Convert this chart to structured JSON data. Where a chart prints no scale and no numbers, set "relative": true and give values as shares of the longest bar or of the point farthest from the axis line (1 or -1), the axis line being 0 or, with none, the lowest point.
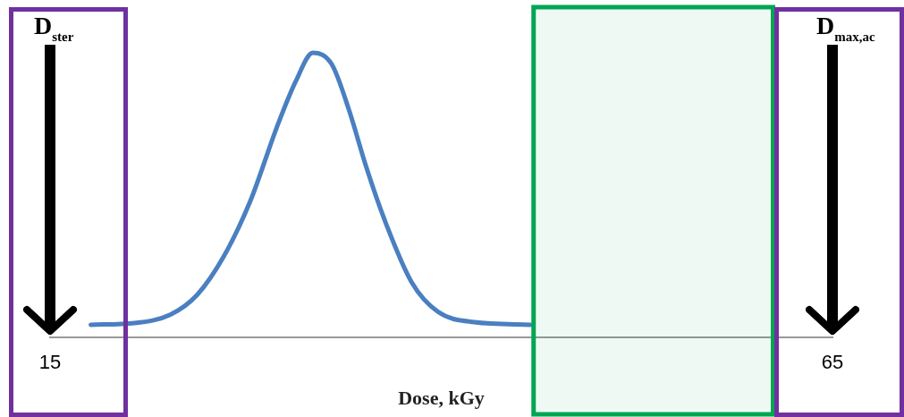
{
  "chart_data": {
    "type": "line",
    "xlabel": "Dose, kGy",
    "relative": true,
    "marker": "none",
    "grid": false,
    "legend": false,
    "xlim": [
      15,
      65
    ],
    "xticks": [
      15,
      65
    ],
    "series": [
      {
        "color": "#4a7fc1",
        "x": [
          17.6,
          20.4,
          22.7,
          24.4,
          26.1,
          27.8,
          29.5,
          30.7,
          31.8,
          33.0,
          34.1,
          35.2,
          36.4,
          38.1,
          39.8,
          42.1,
          45.7
        ],
        "values": [
          0.045,
          0.051,
          0.081,
          0.15,
          0.285,
          0.48,
          0.74,
          0.9,
          1,
          0.96,
          0.8,
          0.6,
          0.41,
          0.195,
          0.09,
          0.054,
          0.045
        ]
      }
    ],
    "ref_lines": [
      {
        "axis": "x",
        "value": 15,
        "label": "D$_{ster}$",
        "color": "#000000"
      },
      {
        "axis": "x",
        "value": 65,
        "label": "D$_{max,ac}$",
        "color": "#000000"
      }
    ],
    "bands": [
      {
        "axis": "x",
        "from": 45.9,
        "to": 61.2,
        "color": "#00a651"
      }
    ]
  }
}
